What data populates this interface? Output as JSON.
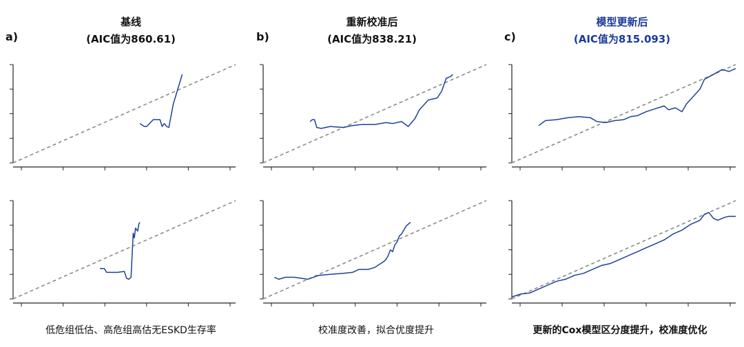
{
  "columns": [
    {
      "tag": "a)",
      "title": "基线",
      "subtitle": "(AIC值为860.61)",
      "caption": "低危组低估、高危组高估无ESKD生存率",
      "highlight": false
    },
    {
      "tag": "b)",
      "title": "重新校准后",
      "subtitle": "(AIC值为838.21)",
      "caption": "校准度改善，拟合优度提升",
      "highlight": false
    },
    {
      "tag": "c)",
      "title": "模型更新后",
      "subtitle": "(AIC值为815.093)",
      "caption": "更新的Cox模型区分度提升，校准度优化",
      "highlight": true
    }
  ],
  "colors": {
    "curve": "#1f3f99",
    "diagonal": "#8a8a8a",
    "highlight_text": "#1a3a9c"
  },
  "chart_data": [
    {
      "type": "line",
      "panel": "a-top",
      "xlim": [
        0,
        1
      ],
      "ylim": [
        0,
        1
      ],
      "series": [
        {
          "x": [
            0.57,
            0.59,
            0.6,
            0.63,
            0.64,
            0.66,
            0.67,
            0.68,
            0.69,
            0.7,
            0.72,
            0.76
          ],
          "y": [
            0.4,
            0.37,
            0.37,
            0.44,
            0.44,
            0.44,
            0.37,
            0.4,
            0.37,
            0.36,
            0.6,
            0.9
          ]
        }
      ]
    },
    {
      "type": "line",
      "panel": "a-bottom",
      "xlim": [
        0,
        1
      ],
      "ylim": [
        0,
        1
      ],
      "series": [
        {
          "x": [
            0.39,
            0.41,
            0.42,
            0.47,
            0.5,
            0.51,
            0.52,
            0.53,
            0.54,
            0.545,
            0.55,
            0.56,
            0.565,
            0.57
          ],
          "y": [
            0.31,
            0.31,
            0.27,
            0.27,
            0.28,
            0.21,
            0.2,
            0.22,
            0.67,
            0.62,
            0.72,
            0.69,
            0.76,
            0.78
          ]
        }
      ]
    },
    {
      "type": "line",
      "panel": "b-top",
      "xlim": [
        0,
        1
      ],
      "ylim": [
        0,
        1
      ],
      "series": [
        {
          "x": [
            0.21,
            0.22,
            0.23,
            0.24,
            0.26,
            0.3,
            0.36,
            0.4,
            0.44,
            0.5,
            0.55,
            0.58,
            0.62,
            0.65,
            0.68,
            0.7,
            0.74,
            0.78,
            0.8,
            0.82,
            0.84,
            0.85
          ],
          "y": [
            0.42,
            0.44,
            0.44,
            0.36,
            0.35,
            0.37,
            0.36,
            0.38,
            0.39,
            0.39,
            0.41,
            0.4,
            0.42,
            0.37,
            0.45,
            0.54,
            0.64,
            0.66,
            0.73,
            0.86,
            0.88,
            0.9
          ]
        }
      ]
    },
    {
      "type": "line",
      "panel": "b-bottom",
      "xlim": [
        0,
        1
      ],
      "ylim": [
        0,
        1
      ],
      "series": [
        {
          "x": [
            0.05,
            0.07,
            0.1,
            0.14,
            0.2,
            0.25,
            0.3,
            0.36,
            0.4,
            0.43,
            0.47,
            0.5,
            0.52,
            0.54,
            0.55,
            0.56,
            0.57,
            0.58,
            0.59,
            0.6,
            0.61,
            0.62,
            0.63,
            0.64,
            0.65,
            0.66
          ],
          "y": [
            0.22,
            0.2,
            0.22,
            0.22,
            0.2,
            0.24,
            0.25,
            0.26,
            0.27,
            0.3,
            0.3,
            0.32,
            0.35,
            0.38,
            0.4,
            0.44,
            0.5,
            0.48,
            0.55,
            0.58,
            0.64,
            0.66,
            0.7,
            0.74,
            0.76,
            0.78
          ]
        }
      ]
    },
    {
      "type": "line",
      "panel": "c-top",
      "xlim": [
        0,
        1
      ],
      "ylim": [
        0,
        1
      ],
      "series": [
        {
          "x": [
            0.12,
            0.15,
            0.2,
            0.25,
            0.3,
            0.35,
            0.38,
            0.42,
            0.46,
            0.5,
            0.53,
            0.56,
            0.6,
            0.64,
            0.68,
            0.7,
            0.73,
            0.76,
            0.78,
            0.8,
            0.84,
            0.86,
            0.9,
            0.94,
            0.97,
            1.0
          ],
          "y": [
            0.38,
            0.43,
            0.44,
            0.46,
            0.47,
            0.46,
            0.42,
            0.41,
            0.43,
            0.44,
            0.47,
            0.48,
            0.52,
            0.55,
            0.58,
            0.54,
            0.56,
            0.52,
            0.6,
            0.65,
            0.75,
            0.85,
            0.9,
            0.95,
            0.93,
            0.96
          ]
        }
      ]
    },
    {
      "type": "line",
      "panel": "c-bottom",
      "xlim": [
        0,
        1
      ],
      "ylim": [
        0,
        1
      ],
      "series": [
        {
          "x": [
            0.0,
            0.04,
            0.08,
            0.12,
            0.16,
            0.2,
            0.24,
            0.28,
            0.32,
            0.36,
            0.4,
            0.44,
            0.48,
            0.52,
            0.56,
            0.6,
            0.64,
            0.68,
            0.72,
            0.76,
            0.8,
            0.84,
            0.86,
            0.88,
            0.9,
            0.92,
            0.95,
            0.97,
            1.0
          ],
          "y": [
            0.02,
            0.05,
            0.06,
            0.1,
            0.14,
            0.18,
            0.2,
            0.24,
            0.26,
            0.3,
            0.34,
            0.36,
            0.4,
            0.44,
            0.48,
            0.52,
            0.56,
            0.6,
            0.66,
            0.7,
            0.76,
            0.8,
            0.86,
            0.88,
            0.82,
            0.8,
            0.83,
            0.84,
            0.84
          ]
        }
      ]
    }
  ]
}
